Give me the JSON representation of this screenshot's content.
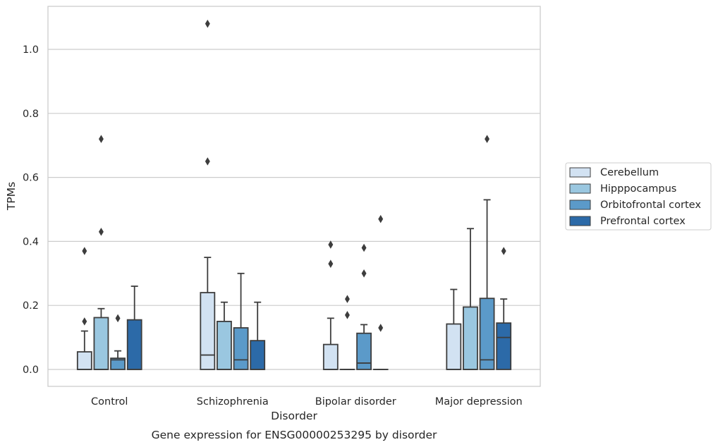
{
  "chart_data": {
    "type": "boxplot",
    "title": "Gene expression for ENSG00000253295 by disorder",
    "xlabel": "Disorder",
    "ylabel": "TPMs",
    "categories": [
      "Control",
      "Schizophrenia",
      "Bipolar disorder",
      "Major depression"
    ],
    "ylim": [
      -0.05,
      1.14
    ],
    "yticks": [
      0.0,
      0.2,
      0.4,
      0.6,
      0.8,
      1.0
    ],
    "ytick_labels": [
      "0.0",
      "0.2",
      "0.4",
      "0.6",
      "0.8",
      "1.0"
    ],
    "grid": "horizontal",
    "legend_position": "right",
    "series": [
      {
        "name": "Cerebellum",
        "color": "#d2e2f2",
        "boxes": [
          {
            "q1": 0.0,
            "median": 0.0,
            "q3": 0.055,
            "whisker_low": 0.0,
            "whisker_high": 0.12,
            "outliers": [
              0.15,
              0.37
            ]
          },
          {
            "q1": 0.0,
            "median": 0.045,
            "q3": 0.24,
            "whisker_low": 0.0,
            "whisker_high": 0.35,
            "outliers": [
              0.65,
              1.08
            ]
          },
          {
            "q1": 0.0,
            "median": 0.0,
            "q3": 0.078,
            "whisker_low": 0.0,
            "whisker_high": 0.16,
            "outliers": [
              0.33,
              0.39
            ]
          },
          {
            "q1": 0.0,
            "median": 0.0,
            "q3": 0.142,
            "whisker_low": 0.0,
            "whisker_high": 0.25,
            "outliers": []
          }
        ]
      },
      {
        "name": "Hipppocampus",
        "color": "#9ac7e0",
        "boxes": [
          {
            "q1": 0.0,
            "median": 0.0,
            "q3": 0.162,
            "whisker_low": 0.0,
            "whisker_high": 0.19,
            "outliers": [
              0.43,
              0.72
            ]
          },
          {
            "q1": 0.0,
            "median": 0.0,
            "q3": 0.15,
            "whisker_low": 0.0,
            "whisker_high": 0.21,
            "outliers": []
          },
          {
            "q1": 0.0,
            "median": 0.0,
            "q3": 0.0,
            "whisker_low": 0.0,
            "whisker_high": 0.0,
            "outliers": [
              0.17,
              0.22
            ]
          },
          {
            "q1": 0.0,
            "median": 0.0,
            "q3": 0.195,
            "whisker_low": 0.0,
            "whisker_high": 0.44,
            "outliers": []
          }
        ]
      },
      {
        "name": "Orbitofrontal cortex",
        "color": "#5b9ac9",
        "boxes": [
          {
            "q1": 0.0,
            "median": 0.03,
            "q3": 0.035,
            "whisker_low": 0.0,
            "whisker_high": 0.058,
            "outliers": [
              0.16
            ]
          },
          {
            "q1": 0.0,
            "median": 0.03,
            "q3": 0.13,
            "whisker_low": 0.0,
            "whisker_high": 0.3,
            "outliers": []
          },
          {
            "q1": 0.0,
            "median": 0.02,
            "q3": 0.113,
            "whisker_low": 0.0,
            "whisker_high": 0.14,
            "outliers": [
              0.3,
              0.38
            ]
          },
          {
            "q1": 0.0,
            "median": 0.03,
            "q3": 0.222,
            "whisker_low": 0.0,
            "whisker_high": 0.53,
            "outliers": [
              0.72
            ]
          }
        ]
      },
      {
        "name": "Prefrontal cortex",
        "color": "#2c6aa8",
        "boxes": [
          {
            "q1": 0.0,
            "median": 0.0,
            "q3": 0.155,
            "whisker_low": 0.0,
            "whisker_high": 0.26,
            "outliers": []
          },
          {
            "q1": 0.0,
            "median": 0.0,
            "q3": 0.09,
            "whisker_low": 0.0,
            "whisker_high": 0.21,
            "outliers": []
          },
          {
            "q1": 0.0,
            "median": 0.0,
            "q3": 0.0,
            "whisker_low": 0.0,
            "whisker_high": 0.0,
            "outliers": [
              0.13,
              0.47
            ]
          },
          {
            "q1": 0.0,
            "median": 0.1,
            "q3": 0.145,
            "whisker_low": 0.0,
            "whisker_high": 0.22,
            "outliers": [
              0.37
            ]
          }
        ]
      }
    ]
  }
}
